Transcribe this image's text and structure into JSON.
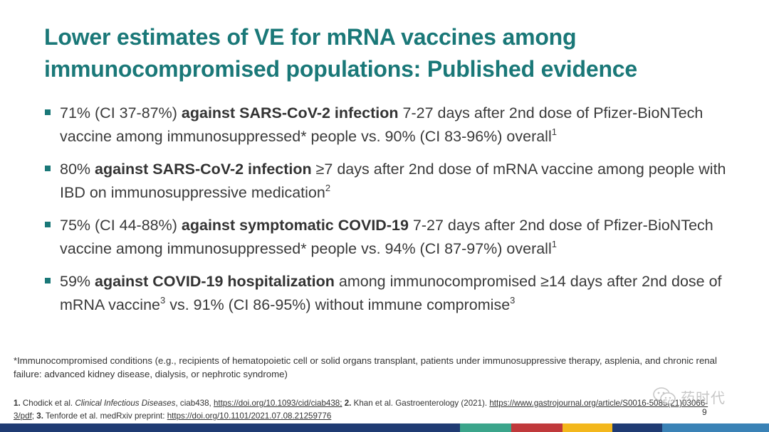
{
  "title": "Lower estimates of VE for mRNA vaccines among immunocompromised populations: Published evidence",
  "bullets": [
    {
      "pre": "71% (CI 37-87%) ",
      "bold": "against SARS-CoV-2 infection",
      "post": " 7-27 days after 2nd dose of Pfizer-BioNTech vaccine among immunosuppressed* people vs. 90% (CI 83-96%) overall",
      "sup": "1"
    },
    {
      "pre": "80% ",
      "bold": "against SARS-CoV-2 infection",
      "post": " ≥7 days after 2nd dose of mRNA vaccine among people with IBD on immunosuppressive medication",
      "sup": "2"
    },
    {
      "pre": "75% (CI 44-88%) ",
      "bold": "against symptomatic COVID-19",
      "post": " 7-27 days after 2nd dose of Pfizer-BioNTech vaccine among immunosuppressed* people vs. 94% (CI 87-97%) overall",
      "sup": "1"
    },
    {
      "pre": "59% ",
      "bold": "against COVID-19 hospitalization",
      "post": " among immunocompromised ≥14 days after 2nd dose of mRNA vaccine",
      "sup": "3",
      "post2": " vs. 91% (CI 86-95%) without immune compromise",
      "sup2": "3"
    }
  ],
  "footnote": "*Immunocompromised conditions (e.g., recipients of hematopoietic cell or solid organs transplant, patients under immunosuppressive therapy, asplenia, and chronic renal failure: advanced kidney disease, dialysis, or nephrotic syndrome)",
  "references": {
    "r1_num": "1.",
    "r1_author": " Chodick et al. ",
    "r1_journal": "Clinical Infectious Diseases",
    "r1_id": ", ciab438, ",
    "r1_link": "https://doi.org/10.1093/cid/ciab438;",
    "r2_num": " 2.",
    "r2_text": " Khan et al. Gastroenterology (2021). ",
    "r2_link": "https://www.gastrojournal.org/article/S0016-5085(21)03066-3/pdf",
    "r3_sep": "; ",
    "r3_num": "3.",
    "r3_text": " Tenforde et al. medRxiv preprint: ",
    "r3_link": "https://doi.org/10.1101/2021.07.08.21259776"
  },
  "page_number": "9",
  "watermark": {
    "text": "药时代",
    "icon": "wechat-icon"
  },
  "colors": {
    "title": "#1a7878",
    "bullet_marker": "#1a7878",
    "text": "#3a3a3a",
    "bottom_bar": [
      "#1f3b73",
      "#3ba58b",
      "#c0393b",
      "#f3b71c",
      "#1f3b73",
      "#3a82b6"
    ]
  }
}
